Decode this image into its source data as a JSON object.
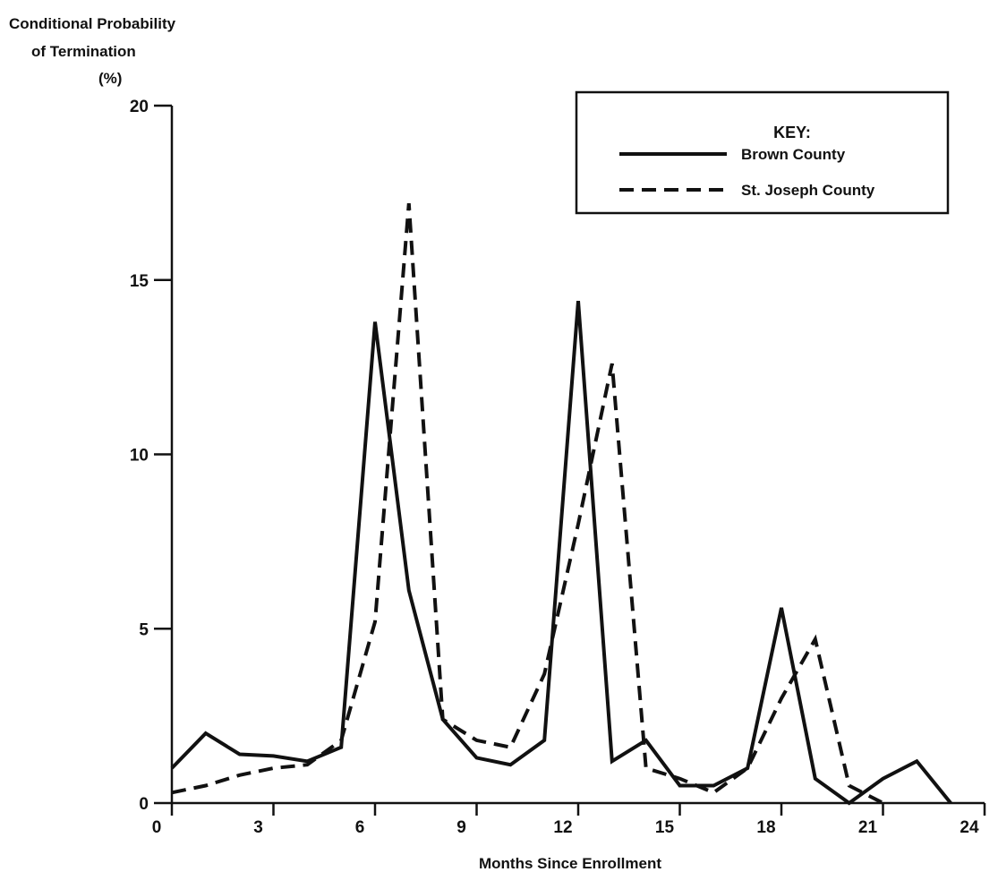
{
  "chart_data": {
    "type": "line",
    "ylabel_lines": [
      "Conditional Probability",
      "of Termination",
      "(%)"
    ],
    "xlabel": "Months Since Enrollment",
    "xlim": [
      0,
      24
    ],
    "ylim": [
      0,
      20
    ],
    "x_ticks": [
      0,
      3,
      6,
      9,
      12,
      15,
      18,
      21,
      24
    ],
    "y_ticks": [
      0,
      5,
      10,
      15,
      20
    ],
    "grid": false,
    "legend": {
      "title": "KEY:",
      "placement": "top-right"
    },
    "series": [
      {
        "name": "Brown County",
        "style": "solid",
        "color": "#111111",
        "x": [
          0,
          1,
          2,
          3,
          4,
          5,
          6,
          7,
          8,
          9,
          10,
          11,
          12,
          13,
          14,
          15,
          16,
          17,
          18,
          19,
          20,
          21,
          22,
          23
        ],
        "values": [
          1.0,
          2.0,
          1.4,
          1.35,
          1.2,
          1.6,
          13.8,
          6.1,
          2.4,
          1.3,
          1.1,
          1.8,
          14.4,
          1.2,
          1.8,
          0.5,
          0.5,
          1.0,
          5.6,
          0.7,
          0.0,
          0.7,
          1.2,
          0.0
        ]
      },
      {
        "name": "St. Joseph County",
        "style": "dashed",
        "color": "#111111",
        "x": [
          0,
          1,
          2,
          3,
          4,
          5,
          6,
          7,
          8,
          9,
          10,
          11,
          12,
          13,
          14,
          15,
          16,
          17,
          18,
          19,
          20,
          21
        ],
        "values": [
          0.3,
          0.5,
          0.8,
          1.0,
          1.1,
          1.8,
          5.2,
          17.2,
          2.4,
          1.8,
          1.6,
          3.7,
          8.0,
          12.6,
          1.0,
          0.7,
          0.3,
          1.0,
          3.0,
          4.7,
          0.5,
          0.0
        ]
      }
    ]
  }
}
